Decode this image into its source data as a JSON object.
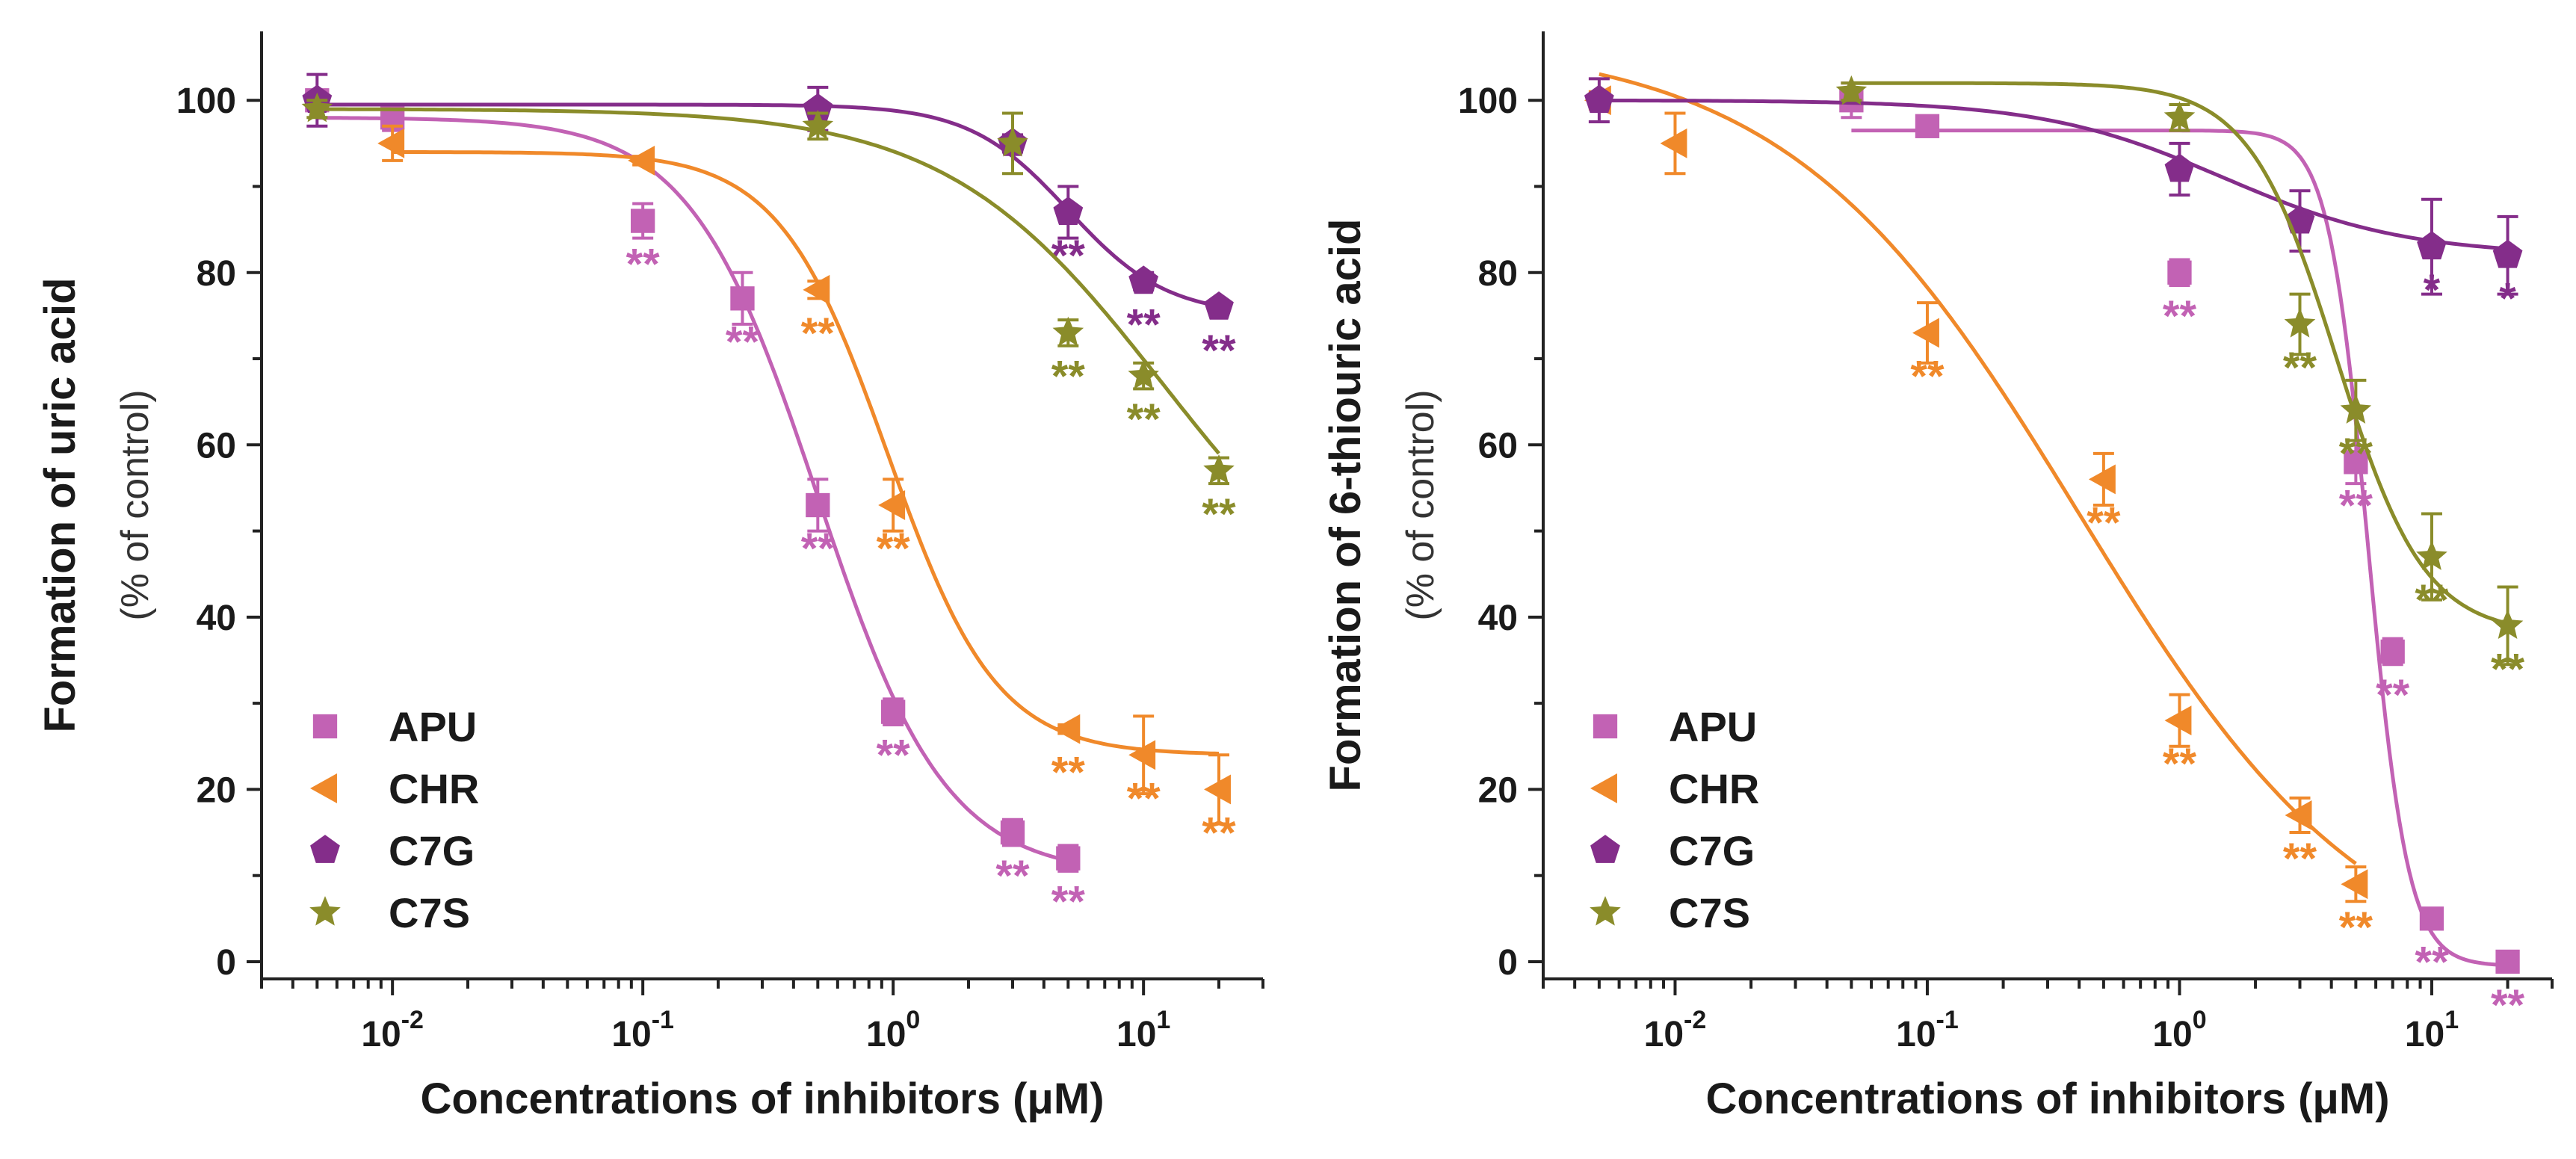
{
  "chart_data": [
    {
      "type": "scatter",
      "title": "",
      "ylabel": "Formation of uric acid",
      "ylabel_sub": "(% of control)",
      "xlabel": "Concentrations of inhibitors (μM)",
      "xscale": "log",
      "xlim": [
        0.003,
        30
      ],
      "ylim": [
        -2,
        108
      ],
      "yticks": [
        "0",
        "20",
        "40",
        "60",
        "80",
        "100"
      ],
      "xticks": [
        {
          "base": "10",
          "exp": "-2"
        },
        {
          "base": "10",
          "exp": "-1"
        },
        {
          "base": "10",
          "exp": "0"
        },
        {
          "base": "10",
          "exp": "1"
        }
      ],
      "legend_position": "bottom-left",
      "series": [
        {
          "name": "APU",
          "color": "#c262b4",
          "marker": "square",
          "points": [
            {
              "x": 0.005,
              "y": 100,
              "err": 0
            },
            {
              "x": 0.01,
              "y": 98,
              "err": 1.5
            },
            {
              "x": 0.1,
              "y": 86,
              "err": 2,
              "sig": "**"
            },
            {
              "x": 0.25,
              "y": 77,
              "err": 3,
              "sig": "**"
            },
            {
              "x": 0.5,
              "y": 53,
              "err": 3,
              "sig": "**"
            },
            {
              "x": 1,
              "y": 29,
              "err": 1.5,
              "sig": "**"
            },
            {
              "x": 3,
              "y": 15,
              "err": 1.5,
              "sig": "**"
            },
            {
              "x": 5,
              "y": 12,
              "err": 1.5,
              "sig": "**"
            }
          ],
          "fit": {
            "bottom": 10,
            "top": 98,
            "ic50": 0.5,
            "hill": 1.7
          }
        },
        {
          "name": "CHR",
          "color": "#f0892a",
          "marker": "triangle-left",
          "points": [
            {
              "x": 0.01,
              "y": 95,
              "err": 2
            },
            {
              "x": 0.1,
              "y": 93,
              "err": 0.5
            },
            {
              "x": 0.5,
              "y": 78,
              "err": 1,
              "sig": "**"
            },
            {
              "x": 1,
              "y": 53,
              "err": 3,
              "sig": "**"
            },
            {
              "x": 5,
              "y": 27,
              "err": 0.5,
              "sig": "**"
            },
            {
              "x": 10,
              "y": 24,
              "err": 4.5,
              "sig": "**"
            },
            {
              "x": 20,
              "y": 20,
              "err": 4,
              "sig": "**"
            }
          ],
          "fit": {
            "bottom": 24,
            "top": 94,
            "ic50": 0.95,
            "hill": 2.0
          }
        },
        {
          "name": "C7G",
          "color": "#842d8a",
          "marker": "pentagon",
          "points": [
            {
              "x": 0.005,
              "y": 100,
              "err": 3
            },
            {
              "x": 0.5,
              "y": 99,
              "err": 2.5
            },
            {
              "x": 3,
              "y": 95,
              "err": 1
            },
            {
              "x": 5,
              "y": 87,
              "err": 3,
              "sig": "**"
            },
            {
              "x": 10,
              "y": 79,
              "err": 1,
              "sig": "**"
            },
            {
              "x": 20,
              "y": 76,
              "err": 0.5,
              "sig": "**"
            }
          ],
          "fit": {
            "bottom": 75,
            "top": 99.5,
            "ic50": 5,
            "hill": 2.2
          }
        },
        {
          "name": "C7S",
          "color": "#8a8c2a",
          "marker": "star",
          "points": [
            {
              "x": 0.005,
              "y": 99,
              "err": 1
            },
            {
              "x": 0.5,
              "y": 97,
              "err": 1.5
            },
            {
              "x": 3,
              "y": 95,
              "err": 3.5
            },
            {
              "x": 5,
              "y": 73,
              "err": 1.5,
              "sig": "**"
            },
            {
              "x": 10,
              "y": 68,
              "err": 1.5,
              "sig": "**"
            },
            {
              "x": 20,
              "y": 57,
              "err": 1.5,
              "sig": "**"
            }
          ],
          "fit": {
            "bottom": 35,
            "top": 99,
            "ic50": 12,
            "hill": 1.0
          }
        }
      ]
    },
    {
      "type": "scatter",
      "title": "",
      "ylabel": "Formation of 6-thiouric acid",
      "ylabel_sub": "(% of control)",
      "xlabel": "Concentrations of inhibitors (μM)",
      "xscale": "log",
      "xlim": [
        0.003,
        30
      ],
      "ylim": [
        -2,
        108
      ],
      "yticks": [
        "0",
        "20",
        "40",
        "60",
        "80",
        "100"
      ],
      "xticks": [
        {
          "base": "10",
          "exp": "-2"
        },
        {
          "base": "10",
          "exp": "-1"
        },
        {
          "base": "10",
          "exp": "0"
        },
        {
          "base": "10",
          "exp": "1"
        }
      ],
      "legend_position": "bottom-left",
      "series": [
        {
          "name": "APU",
          "color": "#c262b4",
          "marker": "square",
          "points": [
            {
              "x": 0.05,
              "y": 100,
              "err": 2
            },
            {
              "x": 0.1,
              "y": 97,
              "err": 1
            },
            {
              "x": 1,
              "y": 80,
              "err": 1.5,
              "sig": "**"
            },
            {
              "x": 5,
              "y": 58,
              "err": 2.5,
              "sig": "**"
            },
            {
              "x": 7,
              "y": 36,
              "err": 1.5,
              "sig": "**"
            },
            {
              "x": 10,
              "y": 5,
              "err": 0.5,
              "sig": "**"
            },
            {
              "x": 20,
              "y": 0,
              "err": 0,
              "sig": "**"
            }
          ],
          "fit": {
            "bottom": -0.5,
            "top": 96.5,
            "ic50": 5.6,
            "hill": 5.5,
            "xmin": 0.05
          }
        },
        {
          "name": "CHR",
          "color": "#f0892a",
          "marker": "triangle-left",
          "points": [
            {
              "x": 0.005,
              "y": 100,
              "err": 1
            },
            {
              "x": 0.01,
              "y": 95,
              "err": 3.5
            },
            {
              "x": 0.1,
              "y": 73,
              "err": 3.5,
              "sig": "**"
            },
            {
              "x": 0.5,
              "y": 56,
              "err": 3,
              "sig": "**"
            },
            {
              "x": 1,
              "y": 28,
              "err": 3,
              "sig": "**"
            },
            {
              "x": 3,
              "y": 17,
              "err": 2,
              "sig": "**"
            },
            {
              "x": 5,
              "y": 9,
              "err": 2,
              "sig": "**"
            }
          ],
          "fit": {
            "bottom": -3,
            "top": 107,
            "ic50": 0.4,
            "hill": 0.75,
            "xmin": 0.005,
            "xmax": 5
          }
        },
        {
          "name": "C7G",
          "color": "#842d8a",
          "marker": "pentagon",
          "points": [
            {
              "x": 0.005,
              "y": 100,
              "err": 2.5
            },
            {
              "x": 1,
              "y": 92,
              "err": 3
            },
            {
              "x": 3,
              "y": 86,
              "err": 3.5
            },
            {
              "x": 10,
              "y": 83,
              "err": 5.5,
              "sig": "*"
            },
            {
              "x": 20,
              "y": 82,
              "err": 4.5,
              "sig": "*"
            }
          ],
          "fit": {
            "bottom": 82,
            "top": 100,
            "ic50": 1.5,
            "hill": 1.2
          }
        },
        {
          "name": "C7S",
          "color": "#8a8c2a",
          "marker": "star",
          "points": [
            {
              "x": 0.05,
              "y": 101,
              "err": 1
            },
            {
              "x": 1,
              "y": 98,
              "err": 1.5
            },
            {
              "x": 3,
              "y": 74,
              "err": 3.5,
              "sig": "**"
            },
            {
              "x": 5,
              "y": 64,
              "err": 3.5,
              "sig": "**"
            },
            {
              "x": 10,
              "y": 47,
              "err": 5,
              "sig": "**"
            },
            {
              "x": 20,
              "y": 39,
              "err": 4.5,
              "sig": "**"
            }
          ],
          "fit": {
            "bottom": 38,
            "top": 102,
            "ic50": 4.2,
            "hill": 2.5
          }
        }
      ]
    }
  ]
}
